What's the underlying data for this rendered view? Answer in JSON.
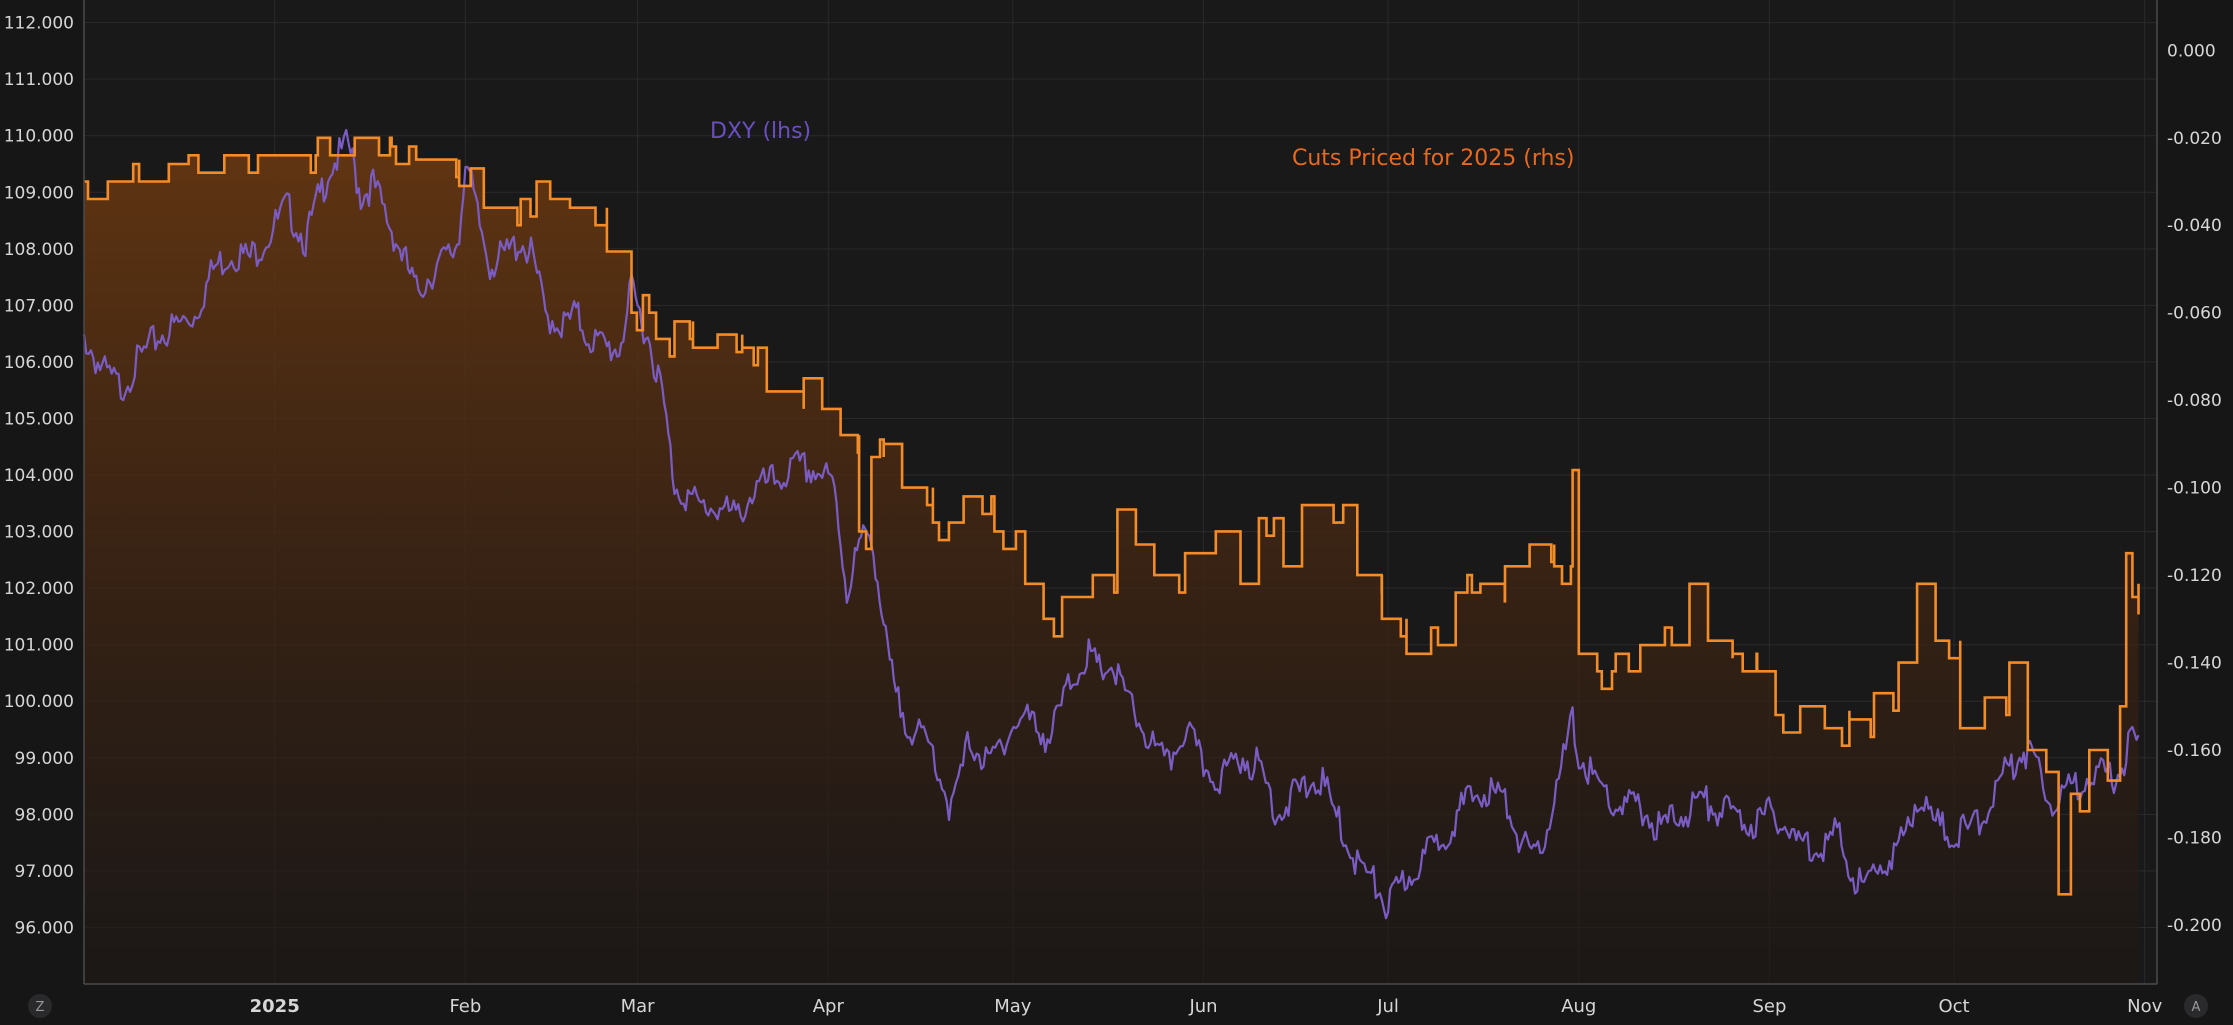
{
  "chart_data": {
    "type": "line",
    "title": "",
    "x_axis": {
      "ticks": [
        "2025",
        "Feb",
        "Mar",
        "Apr",
        "May",
        "Jun",
        "Jul",
        "Aug",
        "Sep",
        "Oct",
        "Nov"
      ],
      "range": [
        "2024-12-01",
        "2025-11-03"
      ]
    },
    "left_axis": {
      "ticks": [
        "96.000",
        "97.000",
        "98.000",
        "99.000",
        "100.000",
        "101.000",
        "102.000",
        "103.000",
        "104.000",
        "105.000",
        "106.000",
        "107.000",
        "108.000",
        "109.000",
        "110.000",
        "111.000",
        "112.000"
      ],
      "ylim": [
        95.0,
        112.4
      ]
    },
    "right_axis": {
      "ticks": [
        "0.000",
        "-0.020",
        "-0.040",
        "-0.060",
        "-0.080",
        "-0.100",
        "-0.120",
        "-0.140",
        "-0.160",
        "-0.180",
        "-0.200"
      ],
      "ylim": [
        -0.2135,
        0.0115
      ]
    },
    "grid": true,
    "series": [
      {
        "name": "DXY (lhs)",
        "axis": "left",
        "style": "line",
        "color": "#7b5cc4",
        "points": [
          [
            "2024-12-01",
            106.6
          ],
          [
            "2024-12-04",
            106.0
          ],
          [
            "2024-12-07",
            105.7
          ],
          [
            "2024-12-10",
            106.2
          ],
          [
            "2024-12-13",
            106.6
          ],
          [
            "2024-12-16",
            106.8
          ],
          [
            "2024-12-19",
            107.0
          ],
          [
            "2024-12-22",
            107.8
          ],
          [
            "2024-12-25",
            108.1
          ],
          [
            "2024-12-28",
            108.0
          ],
          [
            "2024-12-31",
            108.4
          ],
          [
            "2025-01-03",
            108.9
          ],
          [
            "2025-01-06",
            108.3
          ],
          [
            "2025-01-08",
            109.0
          ],
          [
            "2025-01-10",
            109.6
          ],
          [
            "2025-01-13",
            110.0
          ],
          [
            "2025-01-15",
            109.1
          ],
          [
            "2025-01-17",
            109.3
          ],
          [
            "2025-01-20",
            108.5
          ],
          [
            "2025-01-22",
            108.0
          ],
          [
            "2025-01-24",
            107.4
          ],
          [
            "2025-01-27",
            107.8
          ],
          [
            "2025-01-30",
            108.1
          ],
          [
            "2025-01-31",
            108.4
          ],
          [
            "2025-02-01",
            109.8
          ],
          [
            "2025-02-03",
            108.7
          ],
          [
            "2025-02-05",
            107.9
          ],
          [
            "2025-02-07",
            108.0
          ],
          [
            "2025-02-10",
            108.3
          ],
          [
            "2025-02-12",
            108.0
          ],
          [
            "2025-02-14",
            107.0
          ],
          [
            "2025-02-17",
            106.8
          ],
          [
            "2025-02-19",
            107.0
          ],
          [
            "2025-02-21",
            106.6
          ],
          [
            "2025-02-24",
            106.4
          ],
          [
            "2025-02-26",
            106.4
          ],
          [
            "2025-02-28",
            107.4
          ],
          [
            "2025-03-01",
            107.1
          ],
          [
            "2025-03-03",
            106.5
          ],
          [
            "2025-03-05",
            105.6
          ],
          [
            "2025-03-07",
            104.0
          ],
          [
            "2025-03-11",
            103.6
          ],
          [
            "2025-03-14",
            103.6
          ],
          [
            "2025-03-17",
            103.4
          ],
          [
            "2025-03-20",
            103.9
          ],
          [
            "2025-03-24",
            104.1
          ],
          [
            "2025-03-27",
            104.3
          ],
          [
            "2025-03-31",
            104.2
          ],
          [
            "2025-04-02",
            103.9
          ],
          [
            "2025-04-04",
            102.1
          ],
          [
            "2025-04-06",
            102.9
          ],
          [
            "2025-04-08",
            103.2
          ],
          [
            "2025-04-10",
            101.4
          ],
          [
            "2025-04-12",
            100.2
          ],
          [
            "2025-04-15",
            99.6
          ],
          [
            "2025-04-18",
            99.3
          ],
          [
            "2025-04-21",
            98.2
          ],
          [
            "2025-04-24",
            99.5
          ],
          [
            "2025-04-27",
            99.0
          ],
          [
            "2025-04-30",
            99.6
          ],
          [
            "2025-05-03",
            99.9
          ],
          [
            "2025-05-07",
            99.5
          ],
          [
            "2025-05-10",
            100.4
          ],
          [
            "2025-05-13",
            101.0
          ],
          [
            "2025-05-15",
            100.7
          ],
          [
            "2025-05-17",
            100.8
          ],
          [
            "2025-05-20",
            100.1
          ],
          [
            "2025-05-23",
            99.5
          ],
          [
            "2025-05-26",
            99.0
          ],
          [
            "2025-05-29",
            99.7
          ],
          [
            "2025-06-01",
            99.0
          ],
          [
            "2025-06-04",
            98.8
          ],
          [
            "2025-06-07",
            99.2
          ],
          [
            "2025-06-10",
            99.0
          ],
          [
            "2025-06-13",
            98.2
          ],
          [
            "2025-06-17",
            98.6
          ],
          [
            "2025-06-20",
            98.8
          ],
          [
            "2025-06-23",
            98.0
          ],
          [
            "2025-06-26",
            97.3
          ],
          [
            "2025-06-29",
            96.9
          ],
          [
            "2025-07-01",
            96.5
          ],
          [
            "2025-07-03",
            96.9
          ],
          [
            "2025-07-07",
            97.4
          ],
          [
            "2025-07-10",
            97.8
          ],
          [
            "2025-07-14",
            98.4
          ],
          [
            "2025-07-17",
            98.6
          ],
          [
            "2025-07-20",
            98.4
          ],
          [
            "2025-07-23",
            97.6
          ],
          [
            "2025-07-25",
            97.3
          ],
          [
            "2025-07-28",
            98.4
          ],
          [
            "2025-07-31",
            99.8
          ],
          [
            "2025-08-01",
            99.2
          ],
          [
            "2025-08-04",
            98.7
          ],
          [
            "2025-08-07",
            98.3
          ],
          [
            "2025-08-11",
            98.3
          ],
          [
            "2025-08-14",
            97.9
          ],
          [
            "2025-08-18",
            98.2
          ],
          [
            "2025-08-21",
            98.4
          ],
          [
            "2025-08-25",
            98.2
          ],
          [
            "2025-08-29",
            98.0
          ],
          [
            "2025-09-02",
            98.2
          ],
          [
            "2025-09-05",
            97.7
          ],
          [
            "2025-09-09",
            97.6
          ],
          [
            "2025-09-12",
            97.8
          ],
          [
            "2025-09-16",
            96.8
          ],
          [
            "2025-09-19",
            97.3
          ],
          [
            "2025-09-22",
            97.5
          ],
          [
            "2025-09-25",
            98.5
          ],
          [
            "2025-09-28",
            98.0
          ],
          [
            "2025-10-01",
            97.8
          ],
          [
            "2025-10-04",
            97.9
          ],
          [
            "2025-10-07",
            98.4
          ],
          [
            "2025-10-10",
            99.0
          ],
          [
            "2025-10-12",
            99.3
          ],
          [
            "2025-10-14",
            99.2
          ],
          [
            "2025-10-17",
            98.4
          ],
          [
            "2025-10-20",
            98.6
          ],
          [
            "2025-10-23",
            98.9
          ],
          [
            "2025-10-26",
            98.8
          ],
          [
            "2025-10-28",
            98.9
          ],
          [
            "2025-10-30",
            99.5
          ],
          [
            "2025-10-31",
            99.4
          ]
        ]
      },
      {
        "name": "Cuts Priced for 2025 (rhs)",
        "axis": "right",
        "style": "step-area",
        "color": "#f28c28",
        "points": [
          [
            "2024-12-01",
            -0.03
          ],
          [
            "2024-12-09",
            -0.026
          ],
          [
            "2024-12-18",
            -0.024
          ],
          [
            "2025-01-08",
            -0.02
          ],
          [
            "2025-01-10",
            -0.024
          ],
          [
            "2025-01-14",
            -0.02
          ],
          [
            "2025-01-20",
            -0.022
          ],
          [
            "2025-01-24",
            -0.025
          ],
          [
            "2025-01-31",
            -0.031
          ],
          [
            "2025-02-04",
            -0.036
          ],
          [
            "2025-02-10",
            -0.034
          ],
          [
            "2025-02-18",
            -0.036
          ],
          [
            "2025-02-24",
            -0.046
          ],
          [
            "2025-02-28",
            -0.06
          ],
          [
            "2025-03-04",
            -0.066
          ],
          [
            "2025-03-07",
            -0.062
          ],
          [
            "2025-03-10",
            -0.068
          ],
          [
            "2025-03-14",
            -0.065
          ],
          [
            "2025-03-18",
            -0.068
          ],
          [
            "2025-03-22",
            -0.078
          ],
          [
            "2025-03-28",
            -0.075
          ],
          [
            "2025-03-31",
            -0.082
          ],
          [
            "2025-04-03",
            -0.088
          ],
          [
            "2025-04-06",
            -0.11
          ],
          [
            "2025-04-08",
            -0.093
          ],
          [
            "2025-04-10",
            -0.09
          ],
          [
            "2025-04-13",
            -0.1
          ],
          [
            "2025-04-18",
            -0.108
          ],
          [
            "2025-04-23",
            -0.102
          ],
          [
            "2025-04-28",
            -0.11
          ],
          [
            "2025-05-03",
            -0.122
          ],
          [
            "2025-05-06",
            -0.13
          ],
          [
            "2025-05-09",
            -0.125
          ],
          [
            "2025-05-14",
            -0.12
          ],
          [
            "2025-05-18",
            -0.105
          ],
          [
            "2025-05-21",
            -0.113
          ],
          [
            "2025-05-24",
            -0.12
          ],
          [
            "2025-05-29",
            -0.115
          ],
          [
            "2025-06-03",
            -0.11
          ],
          [
            "2025-06-07",
            -0.122
          ],
          [
            "2025-06-10",
            -0.107
          ],
          [
            "2025-06-14",
            -0.118
          ],
          [
            "2025-06-17",
            -0.104
          ],
          [
            "2025-06-21",
            -0.104
          ],
          [
            "2025-06-26",
            -0.12
          ],
          [
            "2025-06-30",
            -0.13
          ],
          [
            "2025-07-04",
            -0.138
          ],
          [
            "2025-07-08",
            -0.132
          ],
          [
            "2025-07-12",
            -0.124
          ],
          [
            "2025-07-16",
            -0.122
          ],
          [
            "2025-07-20",
            -0.118
          ],
          [
            "2025-07-24",
            -0.113
          ],
          [
            "2025-07-28",
            -0.118
          ],
          [
            "2025-07-31",
            -0.096
          ],
          [
            "2025-08-01",
            -0.138
          ],
          [
            "2025-08-04",
            -0.142
          ],
          [
            "2025-08-07",
            -0.138
          ],
          [
            "2025-08-11",
            -0.136
          ],
          [
            "2025-08-15",
            -0.132
          ],
          [
            "2025-08-19",
            -0.122
          ],
          [
            "2025-08-22",
            -0.135
          ],
          [
            "2025-08-26",
            -0.138
          ],
          [
            "2025-08-30",
            -0.142
          ],
          [
            "2025-09-02",
            -0.152
          ],
          [
            "2025-09-06",
            -0.15
          ],
          [
            "2025-09-10",
            -0.155
          ],
          [
            "2025-09-14",
            -0.153
          ],
          [
            "2025-09-18",
            -0.147
          ],
          [
            "2025-09-22",
            -0.14
          ],
          [
            "2025-09-25",
            -0.122
          ],
          [
            "2025-09-28",
            -0.135
          ],
          [
            "2025-10-02",
            -0.155
          ],
          [
            "2025-10-06",
            -0.148
          ],
          [
            "2025-10-10",
            -0.14
          ],
          [
            "2025-10-13",
            -0.16
          ],
          [
            "2025-10-16",
            -0.165
          ],
          [
            "2025-10-18",
            -0.193
          ],
          [
            "2025-10-20",
            -0.17
          ],
          [
            "2025-10-23",
            -0.16
          ],
          [
            "2025-10-26",
            -0.167
          ],
          [
            "2025-10-28",
            -0.15
          ],
          [
            "2025-10-29",
            -0.115
          ],
          [
            "2025-10-30",
            -0.125
          ],
          [
            "2025-10-31",
            -0.122
          ]
        ]
      }
    ],
    "annotations": [
      {
        "text": "DXY (lhs)",
        "color": "#6a4fc0"
      },
      {
        "text": "Cuts Priced for 2025 (rhs)",
        "color": "#e8681d"
      }
    ],
    "corner_buttons": [
      "Z",
      "A"
    ]
  }
}
